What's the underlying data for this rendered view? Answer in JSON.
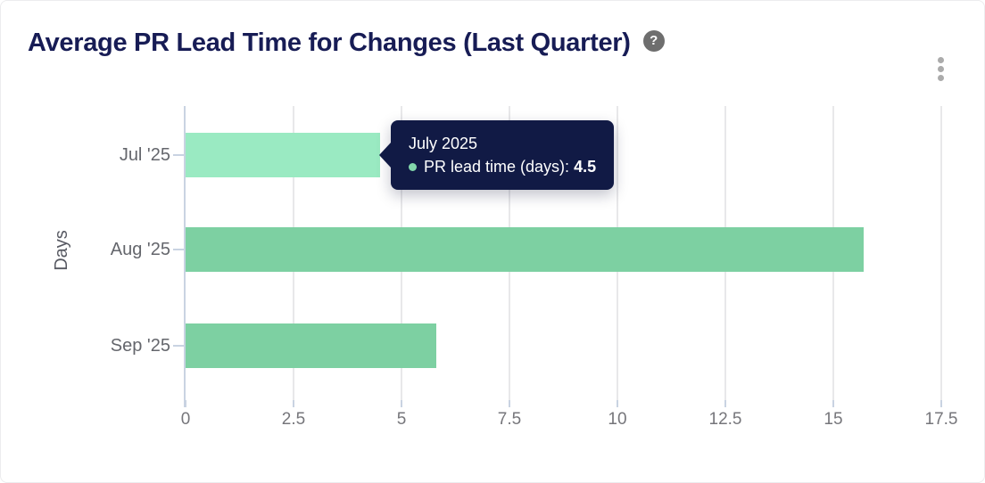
{
  "card": {
    "title": "Average PR Lead Time for Changes (Last Quarter)",
    "help_icon_glyph": "?"
  },
  "colors": {
    "title": "#171c55",
    "bar_default": "#7dd0a2",
    "bar_highlight": "#9aeac2",
    "tooltip_bg": "#111a45",
    "tooltip_dot": "#82d6ab",
    "axis_line": "#c9d3e2",
    "gridline": "#e8e8ea",
    "x_tick_label": "#76767b",
    "y_tick_label": "#64666c",
    "axis_title": "#565861",
    "help_icon_bg": "#6e6e6e",
    "menu_dots": "#ababab"
  },
  "chart_data": {
    "type": "bar",
    "orientation": "horizontal",
    "title": "Average PR Lead Time for Changes (Last Quarter)",
    "xlabel": "",
    "ylabel": "Days",
    "categories": [
      "Jul '25",
      "Aug '25",
      "Sep '25"
    ],
    "series": [
      {
        "name": "PR lead time (days)",
        "values": [
          4.5,
          15.7,
          5.8
        ]
      }
    ],
    "highlighted_index": 0,
    "xlim": [
      0,
      17.5
    ],
    "x_ticks": [
      0,
      2.5,
      5,
      7.5,
      10,
      12.5,
      15,
      17.5
    ],
    "grid": true,
    "legend": "none"
  },
  "tooltip": {
    "title": "July 2025",
    "series_label": "PR lead time (days):",
    "value": "4.5"
  }
}
